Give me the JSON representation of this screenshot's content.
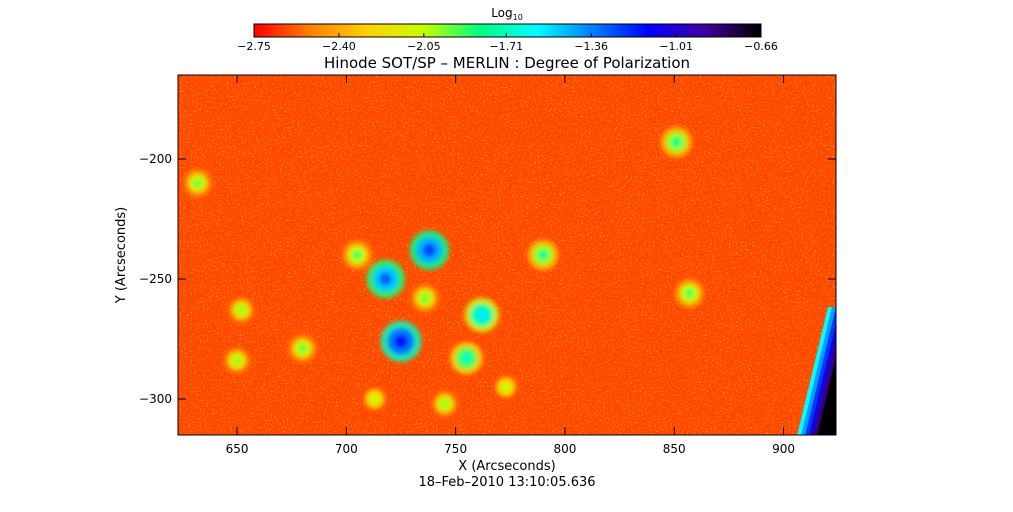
{
  "chart_data": {
    "type": "heatmap",
    "title": "Hinode SOT/SP – MERLIN : Degree of Polarization",
    "xlabel": "X (Arcseconds)",
    "ylabel": "Y (Arcseconds)",
    "timestamp": "18–Feb–2010 13:10:05.636",
    "xlim": [
      623,
      924
    ],
    "ylim": [
      -315,
      -165
    ],
    "xticks": [
      650,
      700,
      750,
      800,
      850,
      900
    ],
    "yticks": [
      -200,
      -250,
      -300
    ],
    "colorbar": {
      "label_main": "Log",
      "label_sub": "10",
      "min": -2.75,
      "max": -0.66,
      "tick_values": [
        -2.75,
        -2.4,
        -2.05,
        -1.71,
        -1.36,
        -1.01,
        -0.66
      ],
      "tick_labels": [
        "−2.75",
        "−2.40",
        "−2.05",
        "−1.71",
        "−1.36",
        "−1.01",
        "−0.66"
      ],
      "colormap": [
        "#ff0000",
        "#ff8000",
        "#ffd000",
        "#c8ff00",
        "#00ff80",
        "#00ffff",
        "#0080ff",
        "#0000ff",
        "#4000a0",
        "#000000"
      ]
    },
    "background_value": -2.62,
    "regions": [
      {
        "x": 725,
        "y": -276,
        "value": -1.15
      },
      {
        "x": 718,
        "y": -250,
        "value": -1.3
      },
      {
        "x": 738,
        "y": -238,
        "value": -1.25
      },
      {
        "x": 762,
        "y": -265,
        "value": -1.55
      },
      {
        "x": 755,
        "y": -283,
        "value": -1.7
      },
      {
        "x": 705,
        "y": -240,
        "value": -1.9
      },
      {
        "x": 736,
        "y": -258,
        "value": -1.95
      },
      {
        "x": 745,
        "y": -302,
        "value": -2.0
      },
      {
        "x": 632,
        "y": -210,
        "value": -1.95
      },
      {
        "x": 680,
        "y": -279,
        "value": -1.95
      },
      {
        "x": 790,
        "y": -240,
        "value": -1.8
      },
      {
        "x": 851,
        "y": -193,
        "value": -1.8
      },
      {
        "x": 857,
        "y": -256,
        "value": -1.9
      },
      {
        "x": 652,
        "y": -263,
        "value": -2.0
      },
      {
        "x": 650,
        "y": -284,
        "value": -2.0
      },
      {
        "x": 773,
        "y": -295,
        "value": -2.05
      },
      {
        "x": 713,
        "y": -300,
        "value": -2.05
      }
    ],
    "limb_edge": {
      "side": "right",
      "start_value": -1.6,
      "end_value": -0.66
    }
  }
}
